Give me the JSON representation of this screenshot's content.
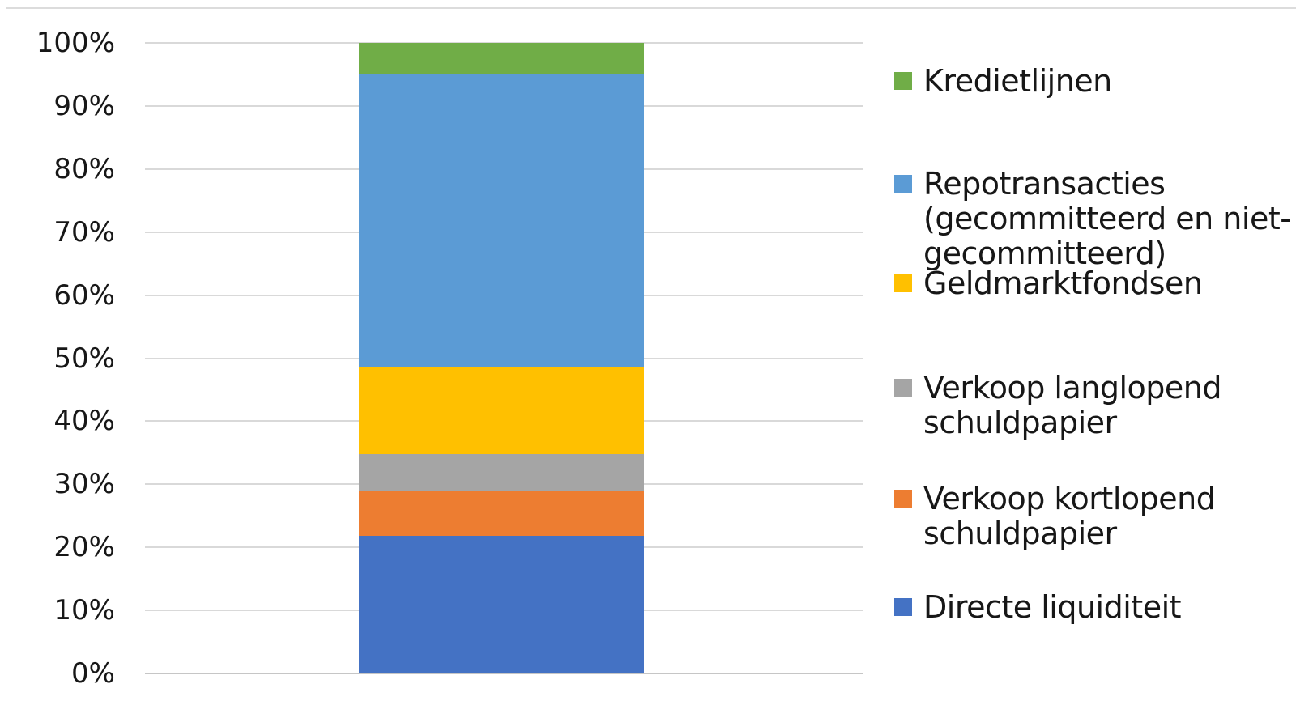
{
  "chart_data": {
    "type": "bar",
    "subtype": "100%-stacked-column",
    "title": "",
    "xlabel": "",
    "ylabel": "",
    "categories": [
      ""
    ],
    "series": [
      {
        "name": "Directe liquiditeit",
        "color": "#4472C4",
        "values": [
          21.8
        ]
      },
      {
        "name": "Verkoop kortlopend schuldpapier",
        "color": "#ED7D31",
        "values": [
          7.1
        ]
      },
      {
        "name": "Verkoop langlopend schuldpapier",
        "color": "#A5A5A5",
        "values": [
          5.9
        ]
      },
      {
        "name": "Geldmarktfondsen",
        "color": "#FFC000",
        "values": [
          13.9
        ]
      },
      {
        "name": "Repotransacties (gecommitteerd en niet-gecommitteerd)",
        "color": "#5B9BD5",
        "values": [
          46.3
        ]
      },
      {
        "name": "Kredietlijnen",
        "color": "#70AD47",
        "values": [
          5.0
        ]
      }
    ],
    "y_axis": {
      "range": [
        0,
        100
      ],
      "tick_labels": [
        "0%",
        "10%",
        "20%",
        "30%",
        "40%",
        "50%",
        "60%",
        "70%",
        "80%",
        "90%",
        "100%"
      ],
      "grid": true
    },
    "legend": {
      "position": "right",
      "items": [
        {
          "color": "#70AD47",
          "lines": [
            "Kredietlijnen"
          ]
        },
        {
          "color": "#5B9BD5",
          "lines": [
            "Repotransacties",
            "(gecommitteerd en niet-",
            "gecommitteerd)"
          ]
        },
        {
          "color": "#FFC000",
          "lines": [
            "Geldmarktfondsen"
          ]
        },
        {
          "color": "#A5A5A5",
          "lines": [
            "Verkoop langlopend",
            "schuldpapier"
          ]
        },
        {
          "color": "#ED7D31",
          "lines": [
            "Verkoop kortlopend",
            "schuldpapier"
          ]
        },
        {
          "color": "#4472C4",
          "lines": [
            "Directe liquiditeit"
          ]
        }
      ]
    }
  }
}
